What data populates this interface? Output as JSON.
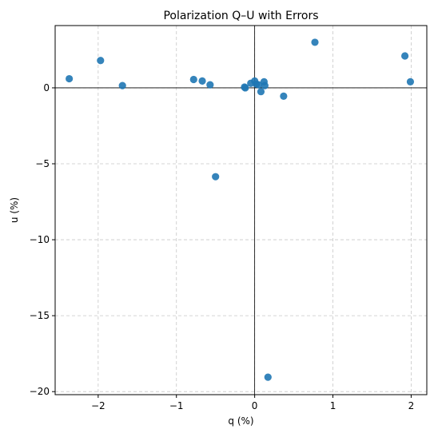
{
  "chart_data": {
    "type": "scatter",
    "title": "Polarization Q–U with Errors",
    "xlabel": "q (%)",
    "ylabel": "u (%)",
    "xlim": [
      -2.55,
      2.2
    ],
    "ylim": [
      -20.2,
      4.1
    ],
    "xticks": [
      -2,
      -1,
      0,
      1,
      2
    ],
    "xtick_labels": [
      "−2",
      "−1",
      "0",
      "1",
      "2"
    ],
    "yticks": [
      0,
      -5,
      -10,
      -15,
      -20
    ],
    "ytick_labels": [
      "0",
      "−5",
      "−10",
      "−15",
      "−20"
    ],
    "grid": true,
    "zero_lines": true,
    "color": "#1f77b4",
    "points": [
      {
        "x": -2.37,
        "y": 0.6
      },
      {
        "x": -1.97,
        "y": 1.8
      },
      {
        "x": -1.69,
        "y": 0.15
      },
      {
        "x": -0.78,
        "y": 0.55
      },
      {
        "x": -0.67,
        "y": 0.45
      },
      {
        "x": -0.57,
        "y": 0.2
      },
      {
        "x": -0.5,
        "y": -5.85
      },
      {
        "x": -0.13,
        "y": 0.05
      },
      {
        "x": -0.12,
        "y": 0.0
      },
      {
        "x": -0.05,
        "y": 0.3
      },
      {
        "x": 0.0,
        "y": 0.45
      },
      {
        "x": 0.02,
        "y": 0.25
      },
      {
        "x": 0.05,
        "y": 0.2
      },
      {
        "x": 0.08,
        "y": -0.25
      },
      {
        "x": 0.12,
        "y": 0.4
      },
      {
        "x": 0.13,
        "y": 0.15
      },
      {
        "x": 0.17,
        "y": -19.05
      },
      {
        "x": 0.37,
        "y": -0.55
      },
      {
        "x": 0.77,
        "y": 3.0
      },
      {
        "x": 1.92,
        "y": 2.1
      },
      {
        "x": 1.99,
        "y": 0.4
      }
    ]
  }
}
